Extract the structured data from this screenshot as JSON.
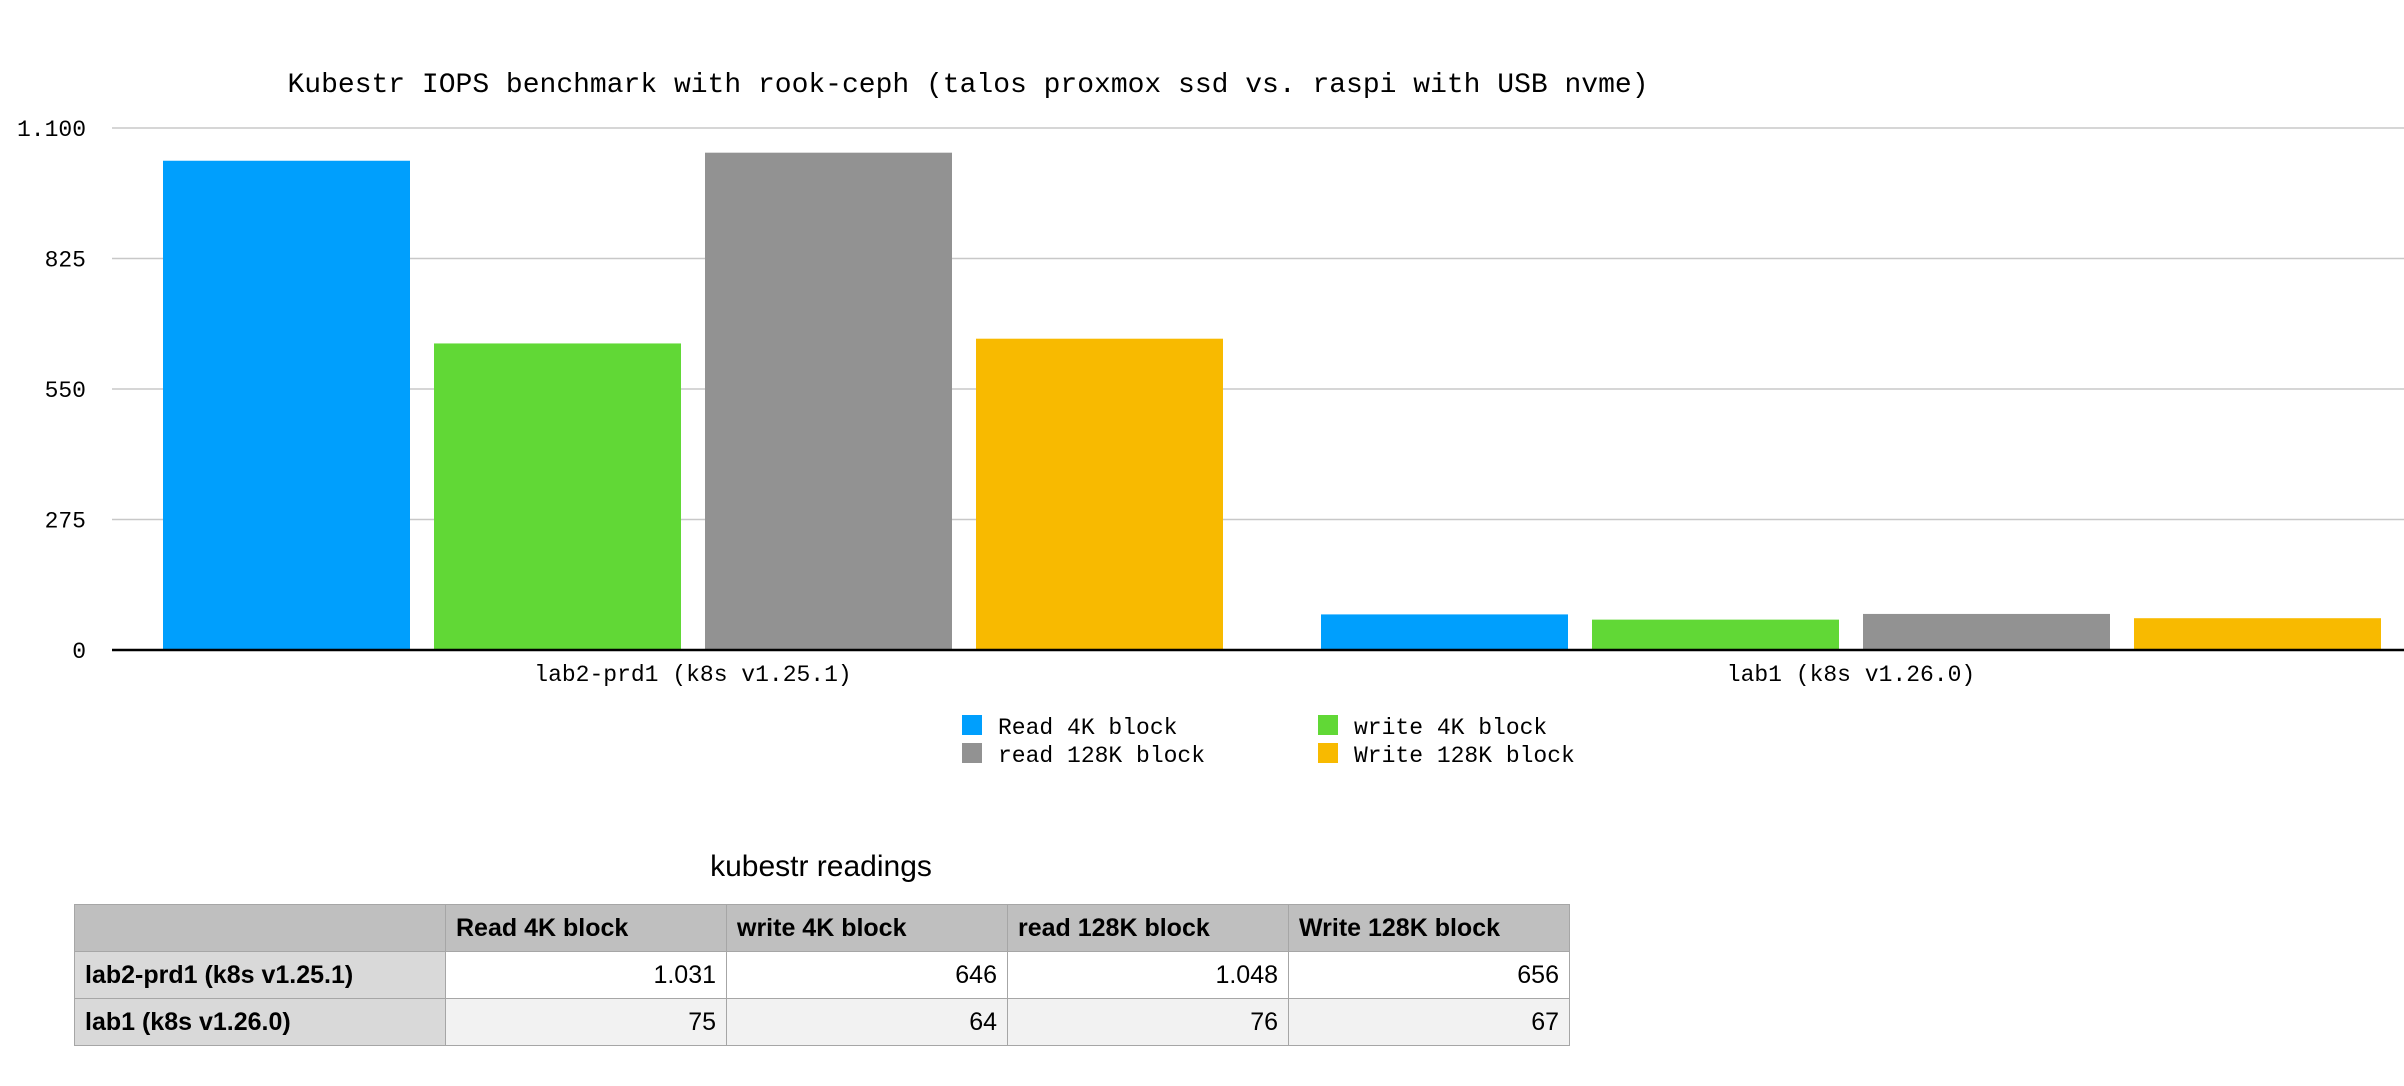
{
  "chart_data": {
    "type": "bar",
    "title": "Kubestr IOPS benchmark with rook-ceph (talos proxmox ssd vs. raspi with USB nvme)",
    "categories": [
      "lab2-prd1 (k8s v1.25.1)",
      "lab1 (k8s v1.26.0)"
    ],
    "series": [
      {
        "name": "Read 4K block",
        "values": [
          1031,
          75
        ],
        "color": "#009ffd"
      },
      {
        "name": "write 4K block",
        "values": [
          646,
          64
        ],
        "color": "#61d836"
      },
      {
        "name": "read 128K block",
        "values": [
          1048,
          76
        ],
        "color": "#929292"
      },
      {
        "name": "Write 128K block",
        "values": [
          656,
          67
        ],
        "color": "#f8ba00"
      }
    ],
    "ylim": [
      0,
      1100
    ],
    "yticks": [
      0,
      275,
      550,
      825,
      1100
    ],
    "ytick_labels": [
      "0",
      "275",
      "550",
      "825",
      "1.100"
    ],
    "grid": true,
    "legend_position": "bottom-center",
    "xlabel": "",
    "ylabel": ""
  },
  "table": {
    "title": "kubestr readings",
    "columns": [
      "",
      "Read 4K block",
      "write 4K block",
      "read 128K block",
      "Write 128K block"
    ],
    "rows": [
      {
        "label": "lab2-prd1 (k8s v1.25.1)",
        "values": [
          "1.031",
          "646",
          "1.048",
          "656"
        ]
      },
      {
        "label": "lab1 (k8s v1.26.0)",
        "values": [
          "75",
          "64",
          "76",
          "67"
        ]
      }
    ]
  }
}
